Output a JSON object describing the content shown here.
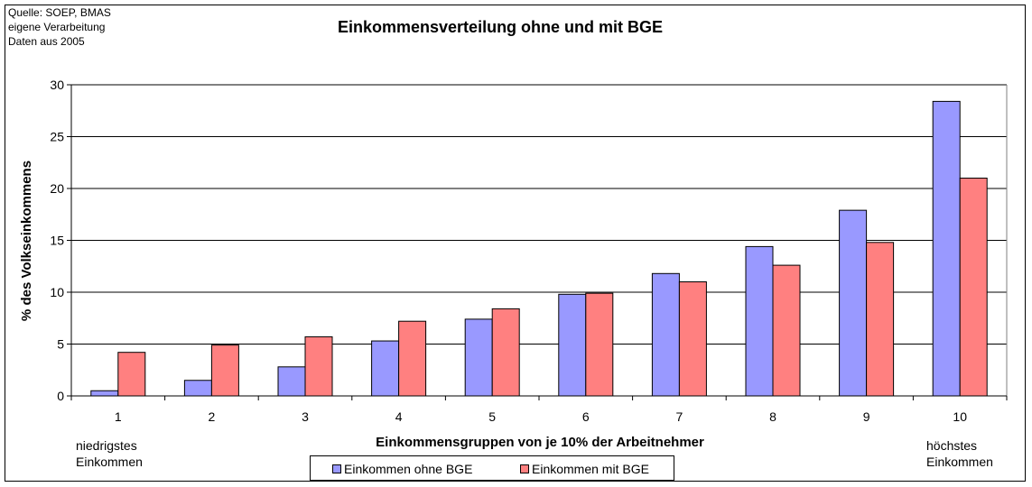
{
  "source": {
    "line1": "Quelle: SOEP, BMAS",
    "line2": "eigene Verarbeitung",
    "line3": "Daten aus 2005"
  },
  "notes": {
    "low_line1": "niedrigstes",
    "low_line2": "Einkommen",
    "high_line1": "höchstes",
    "high_line2": "Einkommen"
  },
  "chart_data": {
    "type": "bar",
    "title": "Einkommensverteilung ohne und mit BGE",
    "xlabel": "Einkommensgruppen von je 10% der Arbeitnehmer",
    "ylabel": "% des Volkseinkommens",
    "categories": [
      "1",
      "2",
      "3",
      "4",
      "5",
      "6",
      "7",
      "8",
      "9",
      "10"
    ],
    "ylim": [
      0,
      30
    ],
    "yticks": [
      "0",
      "5",
      "10",
      "15",
      "20",
      "25",
      "30"
    ],
    "grid": true,
    "legend_position": "bottom",
    "series": [
      {
        "name": "Einkommen ohne BGE",
        "color": "#9999ff",
        "values": [
          0.5,
          1.5,
          2.8,
          5.3,
          7.4,
          9.8,
          11.8,
          14.4,
          17.9,
          28.4
        ]
      },
      {
        "name": "Einkommen mit BGE",
        "color": "#ff8080",
        "values": [
          4.2,
          4.9,
          5.7,
          7.2,
          8.4,
          9.9,
          11.0,
          12.6,
          14.8,
          21.0
        ]
      }
    ]
  }
}
